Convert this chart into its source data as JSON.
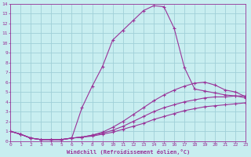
{
  "background_color": "#c8eef0",
  "plot_bg_color": "#c8eef0",
  "grid_color": "#a0d0d8",
  "line_color": "#993399",
  "xlabel": "Windchill (Refroidissement éolien,°C)",
  "xlim": [
    0,
    23
  ],
  "ylim": [
    0,
    14
  ],
  "xticks": [
    0,
    1,
    2,
    3,
    4,
    5,
    6,
    7,
    8,
    9,
    10,
    11,
    12,
    13,
    14,
    15,
    16,
    17,
    18,
    19,
    20,
    21,
    22,
    23
  ],
  "yticks": [
    0,
    1,
    2,
    3,
    4,
    5,
    6,
    7,
    8,
    9,
    10,
    11,
    12,
    13,
    14
  ],
  "curve1_x": [
    0,
    1,
    2,
    3,
    4,
    5,
    6,
    7,
    8,
    9,
    10,
    11,
    12,
    13,
    14,
    15,
    16,
    17,
    18,
    19,
    20,
    21,
    22,
    23
  ],
  "curve1_y": [
    1.0,
    0.7,
    0.3,
    0.15,
    0.15,
    0.15,
    0.3,
    3.4,
    5.6,
    7.6,
    10.3,
    11.3,
    12.3,
    13.3,
    13.8,
    13.7,
    11.5,
    7.5,
    5.3,
    5.1,
    4.9,
    4.7,
    4.6,
    4.4
  ],
  "curve2_x": [
    0,
    1,
    2,
    3,
    4,
    5,
    6,
    7,
    8,
    9,
    10,
    11,
    12,
    13,
    14,
    15,
    16,
    17,
    18,
    19,
    20,
    21,
    22,
    23
  ],
  "curve2_y": [
    1.0,
    0.7,
    0.3,
    0.15,
    0.15,
    0.15,
    0.3,
    0.4,
    0.6,
    0.9,
    1.4,
    2.0,
    2.7,
    3.4,
    4.1,
    4.7,
    5.2,
    5.6,
    5.9,
    6.0,
    5.7,
    5.2,
    5.0,
    4.5
  ],
  "curve3_x": [
    0,
    1,
    2,
    3,
    4,
    5,
    6,
    7,
    8,
    9,
    10,
    11,
    12,
    13,
    14,
    15,
    16,
    17,
    18,
    19,
    20,
    21,
    22,
    23
  ],
  "curve3_y": [
    1.0,
    0.7,
    0.3,
    0.15,
    0.15,
    0.15,
    0.3,
    0.4,
    0.6,
    0.8,
    1.1,
    1.5,
    2.0,
    2.5,
    3.0,
    3.4,
    3.7,
    4.0,
    4.2,
    4.4,
    4.5,
    4.5,
    4.6,
    4.6
  ],
  "curve4_x": [
    0,
    1,
    2,
    3,
    4,
    5,
    6,
    7,
    8,
    9,
    10,
    11,
    12,
    13,
    14,
    15,
    16,
    17,
    18,
    19,
    20,
    21,
    22,
    23
  ],
  "curve4_y": [
    1.0,
    0.7,
    0.3,
    0.15,
    0.15,
    0.15,
    0.3,
    0.4,
    0.5,
    0.7,
    0.9,
    1.2,
    1.5,
    1.8,
    2.2,
    2.5,
    2.8,
    3.1,
    3.3,
    3.5,
    3.6,
    3.7,
    3.8,
    3.9
  ]
}
